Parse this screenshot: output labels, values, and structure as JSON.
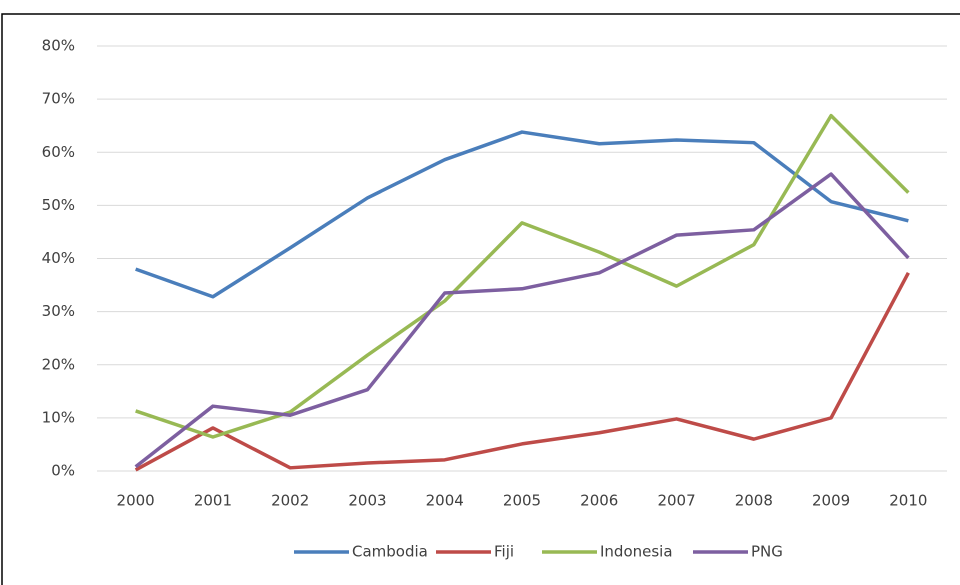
{
  "chart_data": {
    "type": "line",
    "categories": [
      "2000",
      "2001",
      "2002",
      "2003",
      "2004",
      "2005",
      "2006",
      "2007",
      "2008",
      "2009",
      "2010"
    ],
    "series": [
      {
        "name": "Cambodia",
        "color": "#4a7ebb",
        "values": [
          38.0,
          32.8,
          42.0,
          51.4,
          58.6,
          63.8,
          61.6,
          62.3,
          61.8,
          50.7,
          47.1
        ]
      },
      {
        "name": "Fiji",
        "color": "#be4b48",
        "values": [
          0.2,
          8.1,
          0.6,
          1.5,
          2.1,
          5.1,
          7.2,
          9.8,
          6.0,
          10.0,
          37.3
        ]
      },
      {
        "name": "Indonesia",
        "color": "#98b954",
        "values": [
          11.3,
          6.4,
          11.1,
          21.8,
          32.0,
          46.7,
          41.2,
          34.8,
          42.6,
          66.9,
          52.4
        ]
      },
      {
        "name": "PNG",
        "color": "#7d5fa0",
        "values": [
          0.8,
          12.2,
          10.5,
          15.3,
          33.5,
          34.3,
          37.3,
          44.4,
          45.4,
          55.9,
          40.1
        ]
      }
    ],
    "ylim": [
      0,
      80
    ],
    "yticks": [
      {
        "value": 0,
        "label": "0%"
      },
      {
        "value": 10,
        "label": "10%"
      },
      {
        "value": 20,
        "label": "20%"
      },
      {
        "value": 30,
        "label": "30%"
      },
      {
        "value": 40,
        "label": "40%"
      },
      {
        "value": 50,
        "label": "50%"
      },
      {
        "value": 60,
        "label": "60%"
      },
      {
        "value": 70,
        "label": "70%"
      },
      {
        "value": 80,
        "label": "80%"
      }
    ],
    "grid": true,
    "legend": "bottom"
  }
}
